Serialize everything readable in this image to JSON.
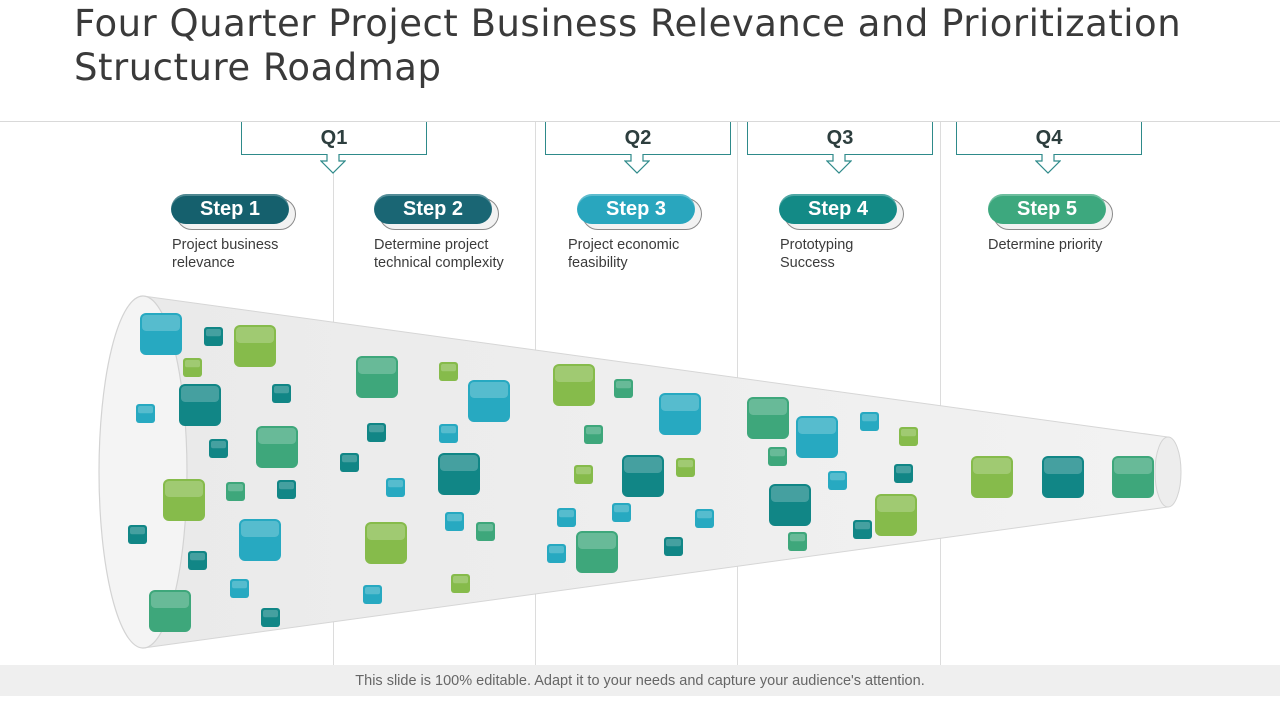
{
  "title": "Four Quarter Project Business Relevance and Prioritization Structure Roadmap",
  "quarters": [
    "Q1",
    "Q2",
    "Q3",
    "Q4"
  ],
  "steps": [
    {
      "label": "Step 1",
      "text": "Project business relevance",
      "color": "#15606d"
    },
    {
      "label": "Step 2",
      "text": "Determine project technical complexity",
      "color": "#1a6674"
    },
    {
      "label": "Step 3",
      "text": "Project economic feasibility",
      "color": "#29a6be"
    },
    {
      "label": "Step 4",
      "text": "Prototyping Success",
      "color": "#138a86"
    },
    {
      "label": "Step 5",
      "text": "Determine priority",
      "color": "#3da87e"
    }
  ],
  "footer": "This slide is 100% editable. Adapt it to your needs and capture your audience's attention.",
  "colors": {
    "accent": "#2e8a8a",
    "teal": "#118686",
    "blue": "#27a9c1",
    "green": "#3ea77b",
    "lime": "#86bb4b"
  }
}
